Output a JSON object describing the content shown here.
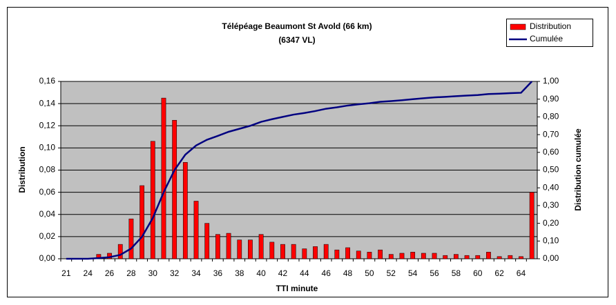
{
  "chart_data": {
    "type": "bar_line",
    "title": "Télépéage  Beaumont   St Avold (66 km)",
    "subtitle": "(6347 VL)",
    "x_label": "TTI minute",
    "y_label": "Distribution",
    "y2_label": "Distribution cumulée",
    "categories": [
      "21",
      null,
      "24",
      null,
      "26",
      null,
      "28",
      null,
      "30",
      null,
      "32",
      null,
      "34",
      null,
      "36",
      null,
      "38",
      null,
      "40",
      null,
      "42",
      null,
      "44",
      null,
      "46",
      null,
      "48",
      null,
      "50",
      null,
      "52",
      null,
      "54",
      null,
      "56",
      null,
      "58",
      null,
      "60",
      null,
      "62",
      null,
      "64",
      null
    ],
    "series": [
      {
        "name": "Distribution",
        "color": "#ff0000",
        "kind": "bar",
        "values": [
          0,
          0,
          0,
          0.004,
          0.005,
          0.013,
          0.036,
          0.066,
          0.106,
          0.145,
          0.125,
          0.087,
          0.052,
          0.032,
          0.022,
          0.023,
          0.017,
          0.017,
          0.022,
          0.015,
          0.013,
          0.013,
          0.009,
          0.011,
          0.013,
          0.008,
          0.01,
          0.007,
          0.006,
          0.008,
          0.004,
          0.005,
          0.006,
          0.005,
          0.005,
          0.003,
          0.004,
          0.003,
          0.003,
          0.006,
          0.002,
          0.003,
          0.002,
          0.06
        ]
      },
      {
        "name": "Cumulée",
        "color": "#000080",
        "kind": "line",
        "axis": "y2",
        "values": [
          0,
          0,
          0,
          0.004,
          0.009,
          0.022,
          0.058,
          0.124,
          0.23,
          0.375,
          0.5,
          0.587,
          0.639,
          0.671,
          0.693,
          0.716,
          0.733,
          0.75,
          0.772,
          0.787,
          0.8,
          0.813,
          0.822,
          0.833,
          0.846,
          0.854,
          0.864,
          0.871,
          0.877,
          0.885,
          0.889,
          0.894,
          0.9,
          0.905,
          0.91,
          0.913,
          0.917,
          0.92,
          0.923,
          0.929,
          0.931,
          0.934,
          0.936,
          1.0
        ]
      }
    ],
    "ylim": [
      0,
      0.16
    ],
    "yticks": [
      {
        "value": 0,
        "label": "0,00"
      },
      {
        "value": 0.02,
        "label": "0,02"
      },
      {
        "value": 0.04,
        "label": "0,04"
      },
      {
        "value": 0.06,
        "label": "0,06"
      },
      {
        "value": 0.08,
        "label": "0,08"
      },
      {
        "value": 0.1,
        "label": "0,10"
      },
      {
        "value": 0.12,
        "label": "0,12"
      },
      {
        "value": 0.14,
        "label": "0,14"
      },
      {
        "value": 0.16,
        "label": "0,16"
      }
    ],
    "y2lim": [
      0,
      1
    ],
    "y2ticks": [
      {
        "value": 0,
        "label": "0,00"
      },
      {
        "value": 0.1,
        "label": "0,10"
      },
      {
        "value": 0.2,
        "label": "0,20"
      },
      {
        "value": 0.3,
        "label": "0,30"
      },
      {
        "value": 0.4,
        "label": "0,40"
      },
      {
        "value": 0.5,
        "label": "0,50"
      },
      {
        "value": 0.6,
        "label": "0,60"
      },
      {
        "value": 0.7,
        "label": "0,70"
      },
      {
        "value": 0.8,
        "label": "0,80"
      },
      {
        "value": 0.9,
        "label": "0,90"
      },
      {
        "value": 1,
        "label": "1,00"
      }
    ],
    "grid": true,
    "legend": "top-right",
    "plot_background": "#c0c0c0"
  }
}
